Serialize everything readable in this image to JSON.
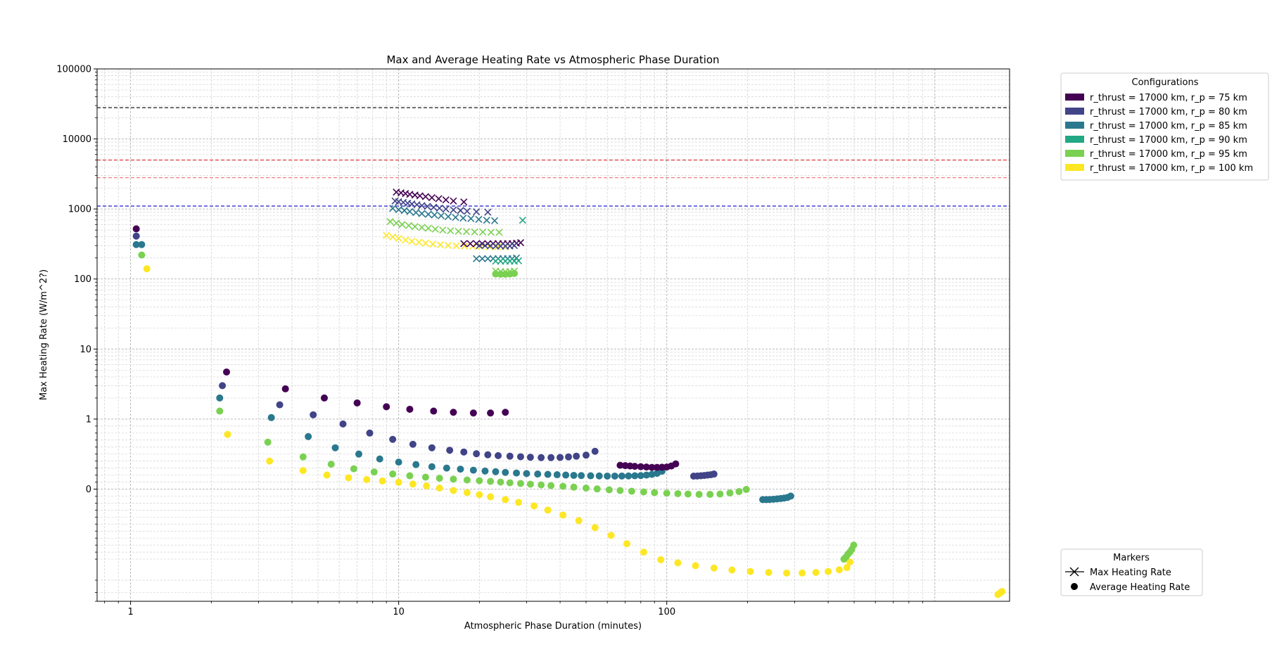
{
  "chart_data": {
    "type": "scatter",
    "title": "Max and Average Heating Rate vs Atmospheric Phase Duration",
    "xlabel": "Atmospheric Phase Duration (minutes)",
    "ylabel": "Max Heating Rate (W/m^2?)",
    "x_scale": "log",
    "y_scale": "symlog",
    "xlim": [
      0.75,
      1900
    ],
    "ylim": [
      -4,
      100000
    ],
    "x_ticks": [
      {
        "value": 1,
        "label": "1"
      },
      {
        "value": 10,
        "label": "10"
      },
      {
        "value": 100,
        "label": "100"
      }
    ],
    "y_ticks": [
      {
        "value": 0,
        "label": "0"
      },
      {
        "value": 1,
        "label": "1"
      },
      {
        "value": 10,
        "label": "10"
      },
      {
        "value": 100,
        "label": "100"
      },
      {
        "value": 1000,
        "label": "1000"
      },
      {
        "value": 10000,
        "label": "10000"
      },
      {
        "value": 100000,
        "label": "100000"
      }
    ],
    "grid": true,
    "reference_lines": [
      {
        "y": 28000,
        "color": "#000000"
      },
      {
        "y": 5000,
        "color": "#d62728"
      },
      {
        "y": 2800,
        "color": "#f08080"
      },
      {
        "y": 1100,
        "color": "#1f1fcc"
      }
    ],
    "legend_configurations": {
      "title": "Configurations",
      "placement": "outside top-right",
      "entries": [
        {
          "label": "r_thrust = 17000 km, r_p = 75 km",
          "color": "#440154"
        },
        {
          "label": "r_thrust = 17000 km, r_p = 80 km",
          "color": "#414487"
        },
        {
          "label": "r_thrust = 17000 km, r_p = 85 km",
          "color": "#2a788e"
        },
        {
          "label": "r_thrust = 17000 km, r_p = 90 km",
          "color": "#22a884"
        },
        {
          "label": "r_thrust = 17000 km, r_p = 95 km",
          "color": "#7ad151"
        },
        {
          "label": "r_thrust = 17000 km, r_p = 100 km",
          "color": "#fde725"
        }
      ]
    },
    "legend_markers": {
      "title": "Markers",
      "placement": "outside bottom-right",
      "entries": [
        {
          "label": "Max Heating Rate",
          "marker": "x"
        },
        {
          "label": "Average Heating Rate",
          "marker": "o"
        }
      ]
    },
    "series": [
      {
        "config": 0,
        "marker": "o",
        "x": [
          1.05,
          2.28,
          3.78,
          5.28,
          7.0,
          9.0,
          11.0,
          13.5,
          16.0,
          19.0,
          22.0,
          25.0
        ],
        "y": [
          520,
          4.7,
          2.7,
          2.0,
          1.7,
          1.5,
          1.38,
          1.3,
          1.25,
          1.22,
          1.22,
          1.25
        ]
      },
      {
        "config": 1,
        "marker": "o",
        "x": [
          1.05,
          2.2,
          3.6,
          4.8,
          6.2,
          7.8,
          9.5,
          11.3,
          13.3,
          15.5,
          17.5,
          19.5,
          21.5,
          23.5,
          26,
          28.5,
          31,
          34,
          37,
          40,
          43,
          46,
          50,
          54
        ],
        "y": [
          410,
          3.0,
          1.6,
          1.15,
          0.93,
          0.8,
          0.71,
          0.64,
          0.59,
          0.555,
          0.53,
          0.505,
          0.49,
          0.478,
          0.47,
          0.462,
          0.455,
          0.45,
          0.45,
          0.452,
          0.46,
          0.47,
          0.485,
          0.54
        ]
      },
      {
        "config": 2,
        "marker": "o",
        "x": [
          1.05,
          1.1,
          2.15,
          3.35,
          4.6,
          5.8,
          7.1,
          8.5,
          10.0,
          11.6,
          13.3,
          15.1,
          17,
          19,
          21,
          23,
          25,
          27.5,
          30,
          33,
          36,
          39,
          42,
          45,
          48,
          52,
          56,
          60,
          64,
          68,
          72,
          76,
          80,
          84,
          88,
          92,
          96
        ],
        "y": [
          310,
          310,
          2.0,
          1.05,
          0.75,
          0.59,
          0.5,
          0.43,
          0.385,
          0.35,
          0.32,
          0.3,
          0.285,
          0.27,
          0.258,
          0.248,
          0.238,
          0.23,
          0.222,
          0.215,
          0.21,
          0.205,
          0.2,
          0.196,
          0.193,
          0.19,
          0.188,
          0.186,
          0.186,
          0.187,
          0.188,
          0.19,
          0.193,
          0.2,
          0.21,
          0.225,
          0.255
        ]
      },
      {
        "config": 4,
        "marker": "o",
        "x": [
          1.1,
          2.15,
          3.25,
          4.4,
          5.6,
          6.8,
          8.1,
          9.5,
          11,
          12.6,
          14.2,
          16,
          18,
          20,
          22,
          24,
          26,
          28.5,
          31,
          34,
          37,
          41,
          45,
          50,
          55,
          61,
          67,
          74,
          82,
          90,
          100,
          110,
          120,
          132,
          145,
          158,
          172,
          186,
          198
        ],
        "y": [
          220,
          1.3,
          0.67,
          0.46,
          0.355,
          0.29,
          0.245,
          0.215,
          0.19,
          0.17,
          0.155,
          0.142,
          0.13,
          0.12,
          0.11,
          0.1,
          0.09,
          0.08,
          0.07,
          0.06,
          0.05,
          0.04,
          0.028,
          0.015,
          0.003,
          -0.01,
          -0.02,
          -0.03,
          -0.04,
          -0.05,
          -0.058,
          -0.065,
          -0.07,
          -0.075,
          -0.075,
          -0.07,
          -0.055,
          -0.035,
          -0.005
        ]
      },
      {
        "config": 5,
        "marker": "o",
        "x": [
          1.15,
          2.3,
          3.3,
          4.4,
          5.4,
          6.5,
          7.6,
          8.7,
          10,
          11.3,
          12.7,
          14.2,
          16,
          18,
          20,
          22,
          25,
          28,
          32,
          36,
          41,
          47,
          54,
          62,
          71,
          82,
          95,
          110,
          128,
          150,
          175,
          205,
          240,
          280,
          320,
          360,
          400,
          440,
          470,
          482
        ],
        "y": [
          140,
          0.78,
          0.4,
          0.265,
          0.2,
          0.162,
          0.136,
          0.116,
          0.098,
          0.072,
          0.045,
          0.015,
          -0.02,
          -0.05,
          -0.08,
          -0.11,
          -0.15,
          -0.19,
          -0.24,
          -0.3,
          -0.37,
          -0.45,
          -0.55,
          -0.66,
          -0.78,
          -0.9,
          -1.02,
          -1.13,
          -1.24,
          -1.34,
          -1.43,
          -1.5,
          -1.55,
          -1.58,
          -1.58,
          -1.55,
          -1.5,
          -1.42,
          -1.32,
          -1.1
        ]
      },
      {
        "config": 0,
        "marker": "o",
        "x": [
          67,
          70,
          73,
          76,
          80,
          84,
          88,
          92,
          96,
          100,
          104,
          108
        ],
        "y": [
          0.34,
          0.335,
          0.33,
          0.325,
          0.32,
          0.315,
          0.31,
          0.31,
          0.312,
          0.315,
          0.33,
          0.36
        ]
      },
      {
        "config": 1,
        "marker": "o",
        "x": [
          126,
          130,
          134,
          138,
          142,
          146,
          150
        ],
        "y": [
          0.185,
          0.187,
          0.19,
          0.194,
          0.2,
          0.205,
          0.215
        ]
      },
      {
        "config": 2,
        "marker": "o",
        "x": [
          228,
          235,
          242,
          250,
          258,
          266,
          274,
          282,
          290
        ],
        "y": [
          -0.15,
          -0.15,
          -0.148,
          -0.145,
          -0.14,
          -0.135,
          -0.128,
          -0.12,
          -0.1
        ]
      },
      {
        "config": 4,
        "marker": "o",
        "x": [
          458,
          466,
          474,
          482,
          490,
          498
        ],
        "y": [
          -1.0,
          -0.97,
          -0.93,
          -0.9,
          -0.86,
          -0.8
        ]
      },
      {
        "config": 5,
        "marker": "o",
        "x": [
          1720,
          1740,
          1760,
          1780
        ],
        "y": [
          -3.2,
          -3.1,
          -3.0,
          -2.9
        ]
      },
      {
        "config": 0,
        "marker": "x",
        "x": [
          9.8,
          10.2,
          10.6,
          11.0,
          11.5,
          12.0,
          12.6,
          13.3,
          14.1,
          15.0,
          16.0,
          17.5
        ],
        "y": [
          1740,
          1700,
          1660,
          1620,
          1580,
          1540,
          1500,
          1450,
          1400,
          1350,
          1300,
          1260
        ]
      },
      {
        "config": 1,
        "marker": "x",
        "x": [
          9.7,
          10.0,
          10.4,
          10.8,
          11.2,
          11.7,
          12.2,
          12.8,
          13.5,
          14.2,
          15.0,
          16.0,
          17.0,
          18.0,
          19.5,
          21.5
        ],
        "y": [
          1300,
          1270,
          1240,
          1210,
          1180,
          1150,
          1120,
          1090,
          1060,
          1030,
          1000,
          970,
          950,
          930,
          910,
          900
        ]
      },
      {
        "config": 2,
        "marker": "x",
        "x": [
          9.5,
          10.0,
          10.5,
          11.0,
          11.6,
          12.2,
          12.9,
          13.6,
          14.4,
          15.3,
          16.3,
          17.4,
          18.6,
          19.9,
          21.3,
          22.8
        ],
        "y": [
          1020,
          980,
          950,
          920,
          890,
          860,
          840,
          820,
          800,
          780,
          760,
          740,
          730,
          710,
          690,
          680
        ]
      },
      {
        "config": 4,
        "marker": "x",
        "x": [
          9.3,
          9.8,
          10.3,
          10.9,
          11.5,
          12.2,
          12.9,
          13.7,
          14.6,
          15.6,
          16.7,
          17.9,
          19.2,
          20.6,
          22.1,
          23.7
        ],
        "y": [
          660,
          630,
          600,
          580,
          560,
          545,
          530,
          515,
          500,
          490,
          480,
          475,
          470,
          468,
          465,
          465
        ]
      },
      {
        "config": 5,
        "marker": "x",
        "x": [
          9.0,
          9.5,
          10.0,
          10.6,
          11.2,
          11.9,
          12.6,
          13.4,
          14.3,
          15.3,
          16.4,
          17.6,
          18.9,
          20.3,
          21.8,
          23.4,
          25.1
        ],
        "y": [
          420,
          400,
          380,
          360,
          345,
          335,
          325,
          315,
          308,
          302,
          298,
          295,
          293,
          292,
          291,
          290,
          290
        ]
      },
      {
        "config": 0,
        "marker": "x",
        "x": [
          17.5,
          18.5,
          19.5,
          20.5,
          21.5,
          22.5,
          23.5,
          24.5,
          25.5,
          26.5,
          27.5,
          28.5
        ],
        "y": [
          320,
          320,
          320,
          320,
          320,
          320,
          320,
          320,
          320,
          320,
          325,
          330
        ]
      },
      {
        "config": 1,
        "marker": "x",
        "x": [
          20,
          21,
          22,
          23,
          24,
          25,
          26,
          27
        ],
        "y": [
          300,
          300,
          298,
          296,
          295,
          295,
          296,
          300
        ]
      },
      {
        "config": 2,
        "marker": "x",
        "x": [
          19.5,
          20.5,
          21.5,
          22.5,
          23.5,
          24.5,
          25.5,
          26.5,
          27.5
        ],
        "y": [
          195,
          195,
          195,
          195,
          195,
          195,
          195,
          195,
          200
        ]
      },
      {
        "config": 3,
        "marker": "x",
        "x": [
          23,
          24,
          25,
          26,
          27,
          28
        ],
        "y": [
          180,
          180,
          180,
          180,
          180,
          182
        ]
      },
      {
        "config": 4,
        "marker": "x",
        "x": [
          23,
          24,
          25,
          26,
          27
        ],
        "y": [
          130,
          128,
          127,
          128,
          130
        ]
      },
      {
        "config": 4,
        "marker": "o",
        "x": [
          23,
          24,
          25,
          26,
          27
        ],
        "y": [
          118,
          117,
          117,
          118,
          120
        ]
      },
      {
        "config": 3,
        "marker": "x",
        "x": [
          29
        ],
        "y": [
          690
        ]
      }
    ]
  }
}
